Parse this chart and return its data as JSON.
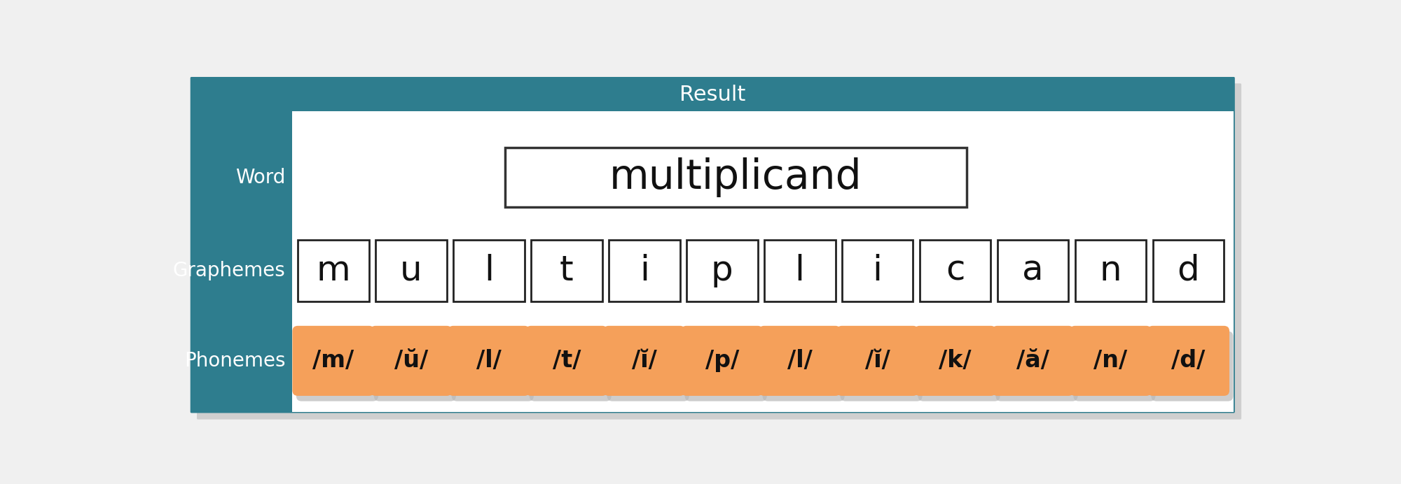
{
  "title": "Result",
  "word": "multiplicand",
  "graphemes": [
    "m",
    "u",
    "l",
    "t",
    "i",
    "p",
    "l",
    "i",
    "c",
    "a",
    "n",
    "d"
  ],
  "phonemes": [
    "/m/",
    "/ŭ/",
    "/l/",
    "/t/",
    "/ĭ/",
    "/p/",
    "/l/",
    "/ĭ/",
    "/k/",
    "/ă/",
    "/n/",
    "/d/"
  ],
  "teal_color": "#2e7d8e",
  "sidebar_text_color": "#ffffff",
  "header_text_color": "#ffffff",
  "main_bg": "#ffffff",
  "grapheme_box_edge": "#222222",
  "phoneme_text_color": "#111111",
  "word_box_edge": "#333333",
  "word_text_color": "#111111",
  "outer_bg": "#f0f0f0",
  "phoneme_orange": "#F5A05A",
  "shadow_color": "#c0c0c0",
  "chart_border_color": "#2e7d8e"
}
